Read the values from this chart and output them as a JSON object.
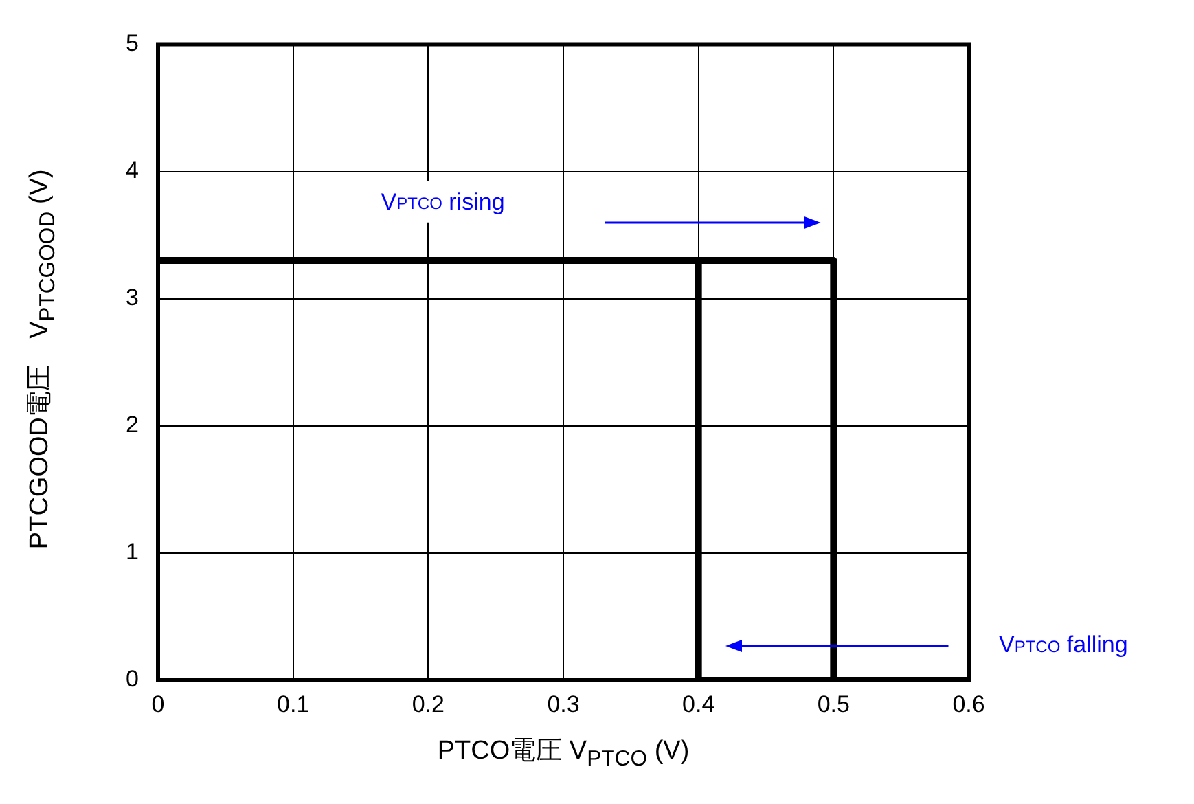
{
  "chart_data": {
    "type": "line",
    "xlabel": "PTCO電圧 V$_{PTCO}$ (V)",
    "ylabel": "PTCGOOD電圧　V$_{PTCGOOD}$ (V)",
    "xlim": [
      0,
      0.6
    ],
    "xticks": [
      0,
      0.1,
      0.2,
      0.3,
      0.4,
      0.5,
      0.6
    ],
    "ylim": [
      0,
      5
    ],
    "yticks": [
      0,
      1,
      2,
      3,
      4,
      5
    ],
    "grid": true,
    "legend": false,
    "marker": "none",
    "line_style": "solid",
    "series": [
      {
        "color": "#000000",
        "x": [
          0,
          0.5,
          0.5,
          0.6
        ],
        "values": [
          3.3,
          3.3,
          0,
          0
        ]
      },
      {
        "color": "#000000",
        "x": [
          0.4,
          0.4,
          0.5
        ],
        "values": [
          3.3,
          0,
          0
        ]
      }
    ],
    "annotations": [
      "V$_{PTCO}$ rising",
      "V$_{PTCO}$ falling"
    ]
  }
}
